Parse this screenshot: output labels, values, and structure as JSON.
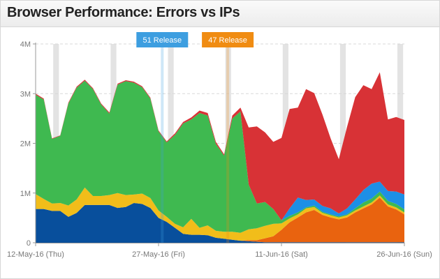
{
  "header": {
    "title": "Browser Performance: Errors vs IPs"
  },
  "colors": {
    "green": "#3fb950",
    "red": "#d83236",
    "yellow": "#f1bd1a",
    "blue": "#084f9c",
    "orange": "#e9630f",
    "lightblue": "#1d8fe6",
    "weekend": "#e3e3e3",
    "release51": "#3d9ee0",
    "release47": "#f08c12",
    "grid": "#d8d8d8"
  },
  "chart_data": {
    "type": "area",
    "stacked": true,
    "x_start": "2016-05-12",
    "x_end": "2016-06-26",
    "x_ticks": [
      {
        "date": "2016-05-12",
        "label": "12-May-16 (Thu)"
      },
      {
        "date": "2016-05-27",
        "label": "27-May-16 (Fri)"
      },
      {
        "date": "2016-06-11",
        "label": "11-Jun-16 (Sat)"
      },
      {
        "date": "2016-06-26",
        "label": "26-Jun-16 (Sun)"
      }
    ],
    "y_ticks": [
      {
        "value": 0,
        "label": "0"
      },
      {
        "value": 1000000,
        "label": "1M"
      },
      {
        "value": 2000000,
        "label": "2M"
      },
      {
        "value": 3000000,
        "label": "3M"
      },
      {
        "value": 4000000,
        "label": "4M"
      }
    ],
    "ylim": [
      0,
      4000000
    ],
    "grid": "horizontal dashed",
    "weekend_dates": [
      "2016-05-14",
      "2016-05-15",
      "2016-05-21",
      "2016-05-22",
      "2016-05-28",
      "2016-05-29",
      "2016-06-04",
      "2016-06-05",
      "2016-06-11",
      "2016-06-12",
      "2016-06-18",
      "2016-06-19",
      "2016-06-25",
      "2016-06-26"
    ],
    "releases": [
      {
        "label": "51 Release",
        "date": "2016-05-27",
        "color": "#3d9ee0"
      },
      {
        "label": "47 Release",
        "date": "2016-06-04",
        "color": "#f08c12"
      }
    ],
    "dates": [
      "2016-05-12",
      "2016-05-13",
      "2016-05-14",
      "2016-05-15",
      "2016-05-16",
      "2016-05-17",
      "2016-05-18",
      "2016-05-19",
      "2016-05-20",
      "2016-05-21",
      "2016-05-22",
      "2016-05-23",
      "2016-05-24",
      "2016-05-25",
      "2016-05-26",
      "2016-05-27",
      "2016-05-28",
      "2016-05-29",
      "2016-05-30",
      "2016-05-31",
      "2016-06-01",
      "2016-06-02",
      "2016-06-03",
      "2016-06-04",
      "2016-06-05",
      "2016-06-06",
      "2016-06-07",
      "2016-06-08",
      "2016-06-09",
      "2016-06-10",
      "2016-06-11",
      "2016-06-12",
      "2016-06-13",
      "2016-06-14",
      "2016-06-15",
      "2016-06-16",
      "2016-06-17",
      "2016-06-18",
      "2016-06-19",
      "2016-06-20",
      "2016-06-21",
      "2016-06-22",
      "2016-06-23",
      "2016-06-24",
      "2016-06-25",
      "2016-06-26"
    ],
    "series": [
      {
        "color": "#084f9c",
        "values": [
          680000,
          680000,
          640000,
          640000,
          520000,
          600000,
          760000,
          760000,
          760000,
          760000,
          700000,
          720000,
          800000,
          780000,
          700000,
          500000,
          420000,
          300000,
          180000,
          160000,
          160000,
          150000,
          100000,
          80000,
          60000,
          40000,
          30000,
          20000,
          10000,
          10000,
          10000,
          10000,
          10000,
          10000,
          10000,
          10000,
          10000,
          10000,
          10000,
          10000,
          10000,
          10000,
          10000,
          10000,
          10000,
          10000
        ]
      },
      {
        "color": "#e9630f",
        "values": [
          0,
          0,
          0,
          0,
          0,
          0,
          0,
          0,
          0,
          0,
          0,
          0,
          0,
          0,
          0,
          0,
          0,
          0,
          0,
          0,
          0,
          0,
          0,
          0,
          0,
          0,
          20000,
          30000,
          80000,
          120000,
          250000,
          400000,
          500000,
          600000,
          650000,
          550000,
          500000,
          460000,
          500000,
          600000,
          680000,
          760000,
          900000,
          720000,
          660000,
          560000
        ]
      },
      {
        "color": "#f1bd1a",
        "values": [
          300000,
          200000,
          150000,
          160000,
          230000,
          270000,
          350000,
          180000,
          180000,
          200000,
          300000,
          240000,
          170000,
          210000,
          200000,
          150000,
          100000,
          80000,
          130000,
          320000,
          140000,
          200000,
          140000,
          140000,
          160000,
          160000,
          220000,
          240000,
          250000,
          250000,
          130000,
          80000,
          60000,
          80000,
          60000,
          40000,
          40000,
          40000,
          40000,
          40000,
          40000,
          40000,
          40000,
          40000,
          40000,
          40000
        ]
      },
      {
        "color": "#3fb950",
        "values": [
          2000000,
          2000000,
          1300000,
          1350000,
          2050000,
          2250000,
          2150000,
          2150000,
          1840000,
          1640000,
          2180000,
          2290000,
          2250000,
          2140000,
          2000000,
          1590000,
          1500000,
          1790000,
          2090000,
          2000000,
          2310000,
          2210000,
          1750000,
          1530000,
          2280000,
          2440000,
          900000,
          500000,
          480000,
          300000,
          60000,
          50000,
          40000,
          20000,
          30000,
          20000,
          20000,
          20000,
          20000,
          40000,
          80000,
          80000,
          80000,
          70000,
          70000,
          60000
        ]
      },
      {
        "color": "#1d8fe6",
        "values": [
          0,
          0,
          0,
          0,
          0,
          0,
          0,
          0,
          0,
          0,
          0,
          0,
          0,
          0,
          0,
          0,
          0,
          0,
          0,
          0,
          0,
          0,
          0,
          0,
          0,
          0,
          0,
          0,
          0,
          0,
          0,
          150000,
          300000,
          150000,
          120000,
          120000,
          120000,
          60000,
          120000,
          180000,
          250000,
          300000,
          200000,
          200000,
          250000,
          300000
        ]
      },
      {
        "color": "#d83236",
        "values": [
          20000,
          20000,
          10000,
          10000,
          20000,
          20000,
          20000,
          20000,
          20000,
          20000,
          20000,
          20000,
          20000,
          20000,
          20000,
          20000,
          20000,
          30000,
          30000,
          40000,
          50000,
          50000,
          40000,
          30000,
          60000,
          80000,
          1150000,
          1550000,
          1400000,
          1350000,
          1660000,
          2000000,
          1810000,
          2230000,
          2140000,
          1840000,
          1410000,
          1090000,
          1640000,
          2060000,
          2110000,
          1900000,
          2200000,
          1440000,
          1500000,
          1500000
        ]
      }
    ]
  }
}
